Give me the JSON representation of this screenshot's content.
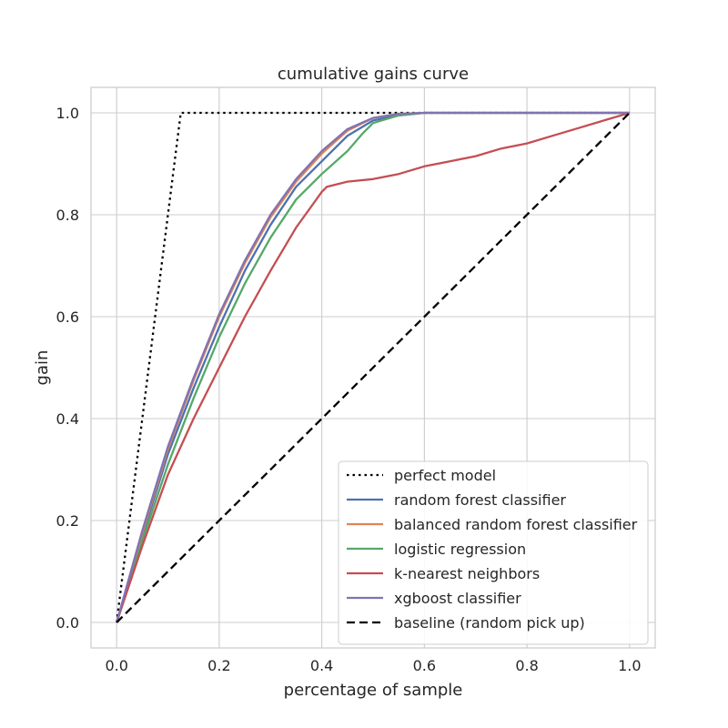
{
  "chart_data": {
    "type": "line",
    "title": "cumulative gains curve",
    "xlabel": "percentage of sample",
    "ylabel": "gain",
    "xlim": [
      -0.05,
      1.05
    ],
    "ylim": [
      -0.05,
      1.05
    ],
    "xticks": [
      0.0,
      0.2,
      0.4,
      0.6,
      0.8,
      1.0
    ],
    "xtick_labels": [
      "0.0",
      "0.2",
      "0.4",
      "0.6",
      "0.8",
      "1.0"
    ],
    "yticks": [
      0.0,
      0.2,
      0.4,
      0.6,
      0.8,
      1.0
    ],
    "ytick_labels": [
      "0.0",
      "0.2",
      "0.4",
      "0.6",
      "0.8",
      "1.0"
    ],
    "grid": true,
    "legend_position": "lower-right",
    "series": [
      {
        "name": "perfect model",
        "color": "#000000",
        "dash": "dotted",
        "x": [
          0.0,
          0.125,
          1.0
        ],
        "y": [
          0.0,
          1.0,
          1.0
        ]
      },
      {
        "name": "random forest classifier",
        "color": "#4c72b0",
        "dash": "solid",
        "x": [
          0.0,
          0.05,
          0.1,
          0.15,
          0.2,
          0.25,
          0.3,
          0.35,
          0.4,
          0.45,
          0.5,
          0.55,
          0.6,
          0.7,
          0.8,
          0.9,
          1.0
        ],
        "y": [
          0.0,
          0.17,
          0.33,
          0.46,
          0.58,
          0.69,
          0.78,
          0.855,
          0.905,
          0.955,
          0.985,
          0.995,
          1.0,
          1.0,
          1.0,
          1.0,
          1.0
        ]
      },
      {
        "name": "balanced random forest classifier",
        "color": "#dd8452",
        "dash": "solid",
        "x": [
          0.0,
          0.05,
          0.1,
          0.15,
          0.2,
          0.25,
          0.3,
          0.35,
          0.4,
          0.45,
          0.5,
          0.55,
          0.6,
          0.7,
          0.8,
          0.9,
          1.0
        ],
        "y": [
          0.0,
          0.175,
          0.34,
          0.475,
          0.6,
          0.705,
          0.795,
          0.865,
          0.92,
          0.965,
          0.99,
          0.998,
          1.0,
          1.0,
          1.0,
          1.0,
          1.0
        ]
      },
      {
        "name": "logistic regression",
        "color": "#55a868",
        "dash": "solid",
        "x": [
          0.0,
          0.05,
          0.1,
          0.15,
          0.2,
          0.25,
          0.3,
          0.35,
          0.4,
          0.45,
          0.48,
          0.5,
          0.55,
          0.6,
          0.7,
          0.8,
          0.9,
          1.0
        ],
        "y": [
          0.0,
          0.16,
          0.31,
          0.44,
          0.56,
          0.665,
          0.755,
          0.83,
          0.88,
          0.925,
          0.96,
          0.98,
          0.995,
          1.0,
          1.0,
          1.0,
          1.0,
          1.0
        ]
      },
      {
        "name": "k-nearest neighbors",
        "color": "#c44e52",
        "dash": "solid",
        "x": [
          0.0,
          0.05,
          0.1,
          0.15,
          0.2,
          0.25,
          0.3,
          0.35,
          0.4,
          0.41,
          0.45,
          0.5,
          0.55,
          0.6,
          0.65,
          0.7,
          0.75,
          0.8,
          0.85,
          0.9,
          0.95,
          1.0
        ],
        "y": [
          0.0,
          0.15,
          0.29,
          0.4,
          0.5,
          0.6,
          0.69,
          0.775,
          0.845,
          0.855,
          0.865,
          0.87,
          0.88,
          0.895,
          0.905,
          0.915,
          0.93,
          0.94,
          0.955,
          0.97,
          0.985,
          1.0
        ]
      },
      {
        "name": "xgboost classifier",
        "color": "#8172b3",
        "dash": "solid",
        "x": [
          0.0,
          0.05,
          0.1,
          0.15,
          0.2,
          0.25,
          0.3,
          0.35,
          0.4,
          0.45,
          0.5,
          0.55,
          0.6,
          0.7,
          0.8,
          0.9,
          1.0
        ],
        "y": [
          0.0,
          0.18,
          0.345,
          0.48,
          0.605,
          0.71,
          0.8,
          0.87,
          0.925,
          0.968,
          0.99,
          0.998,
          1.0,
          1.0,
          1.0,
          1.0,
          1.0
        ]
      },
      {
        "name": "baseline (random pick up)",
        "color": "#000000",
        "dash": "dashed",
        "x": [
          0.0,
          1.0
        ],
        "y": [
          0.0,
          1.0
        ]
      }
    ]
  }
}
